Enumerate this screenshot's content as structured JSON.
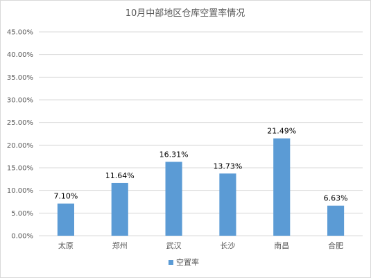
{
  "chart_data": {
    "type": "bar",
    "title": "10月中部地区仓库空置率情况",
    "categories": [
      "太原",
      "郑州",
      "武汉",
      "长沙",
      "南昌",
      "合肥"
    ],
    "series": [
      {
        "name": "空置率",
        "values": [
          7.1,
          11.64,
          16.31,
          13.73,
          21.49,
          6.63
        ],
        "data_labels": [
          "7.10%",
          "11.64%",
          "16.31%",
          "13.73%",
          "21.49%",
          "6.63%"
        ]
      }
    ],
    "ylim": [
      0,
      45
    ],
    "yticks": [
      0,
      5,
      10,
      15,
      20,
      25,
      30,
      35,
      40,
      45
    ],
    "ytick_labels": [
      "0.00%",
      "5.00%",
      "10.00%",
      "15.00%",
      "20.00%",
      "25.00%",
      "30.00%",
      "35.00%",
      "40.00%",
      "45.00%"
    ],
    "xlabel": "",
    "ylabel": "",
    "grid": true,
    "legend": "bottom",
    "colors": {
      "bar": "#5b9bd5",
      "grid": "#d9d9d9",
      "text": "#595959"
    }
  }
}
